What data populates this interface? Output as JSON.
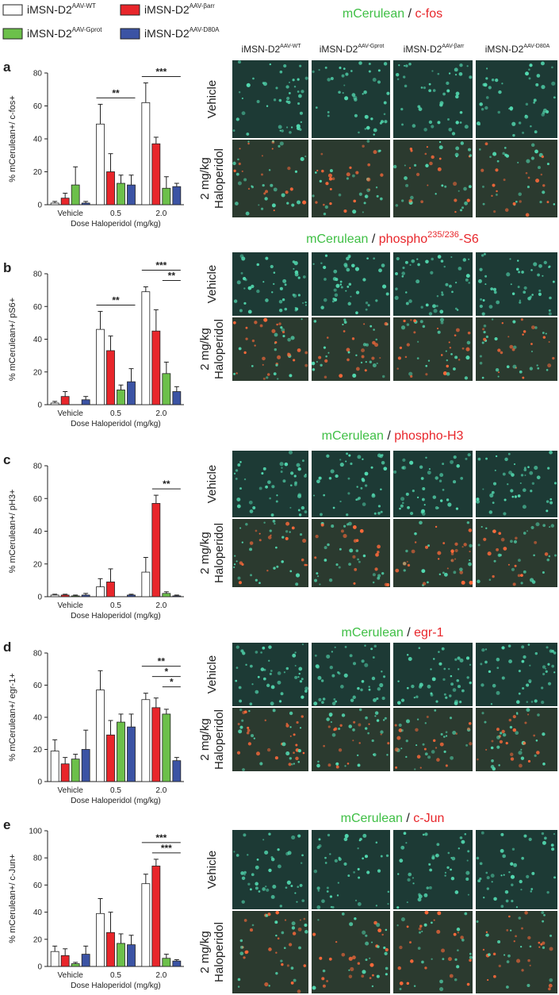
{
  "legend": [
    {
      "label": "iMSN-D2",
      "sup": "AAV-WT",
      "color": "#ffffff"
    },
    {
      "label": "iMSN-D2",
      "sup": "AAV-βarr",
      "color": "#e8262b"
    },
    {
      "label": "iMSN-D2",
      "sup": "AAV-Gprot",
      "color": "#6cc04a"
    },
    {
      "label": "iMSN-D2",
      "sup": "AAV-D80A",
      "color": "#3b53a4"
    }
  ],
  "chart_data": [
    {
      "type": "bar",
      "panel": "a",
      "ylabel": "% mCerulean+/ c-fos+",
      "xlabel": "Dose Haloperidol (mg/kg)",
      "categories": [
        "Vehicle",
        "0.5",
        "2.0"
      ],
      "ylim": [
        0,
        80
      ],
      "yticks": [
        0,
        20,
        40,
        60,
        80
      ],
      "series": [
        {
          "values": [
            1,
            49,
            62
          ],
          "errors": [
            1,
            12,
            12
          ]
        },
        {
          "values": [
            4,
            20,
            37
          ],
          "errors": [
            3,
            11,
            4
          ]
        },
        {
          "values": [
            12,
            13,
            10
          ],
          "errors": [
            11,
            5,
            7
          ]
        },
        {
          "values": [
            1,
            12,
            11
          ],
          "errors": [
            1,
            6,
            2
          ]
        }
      ],
      "significance": [
        {
          "label": "**",
          "category": 1,
          "from": 0,
          "to": 3
        },
        {
          "label": "***",
          "category": 2,
          "from": 0,
          "to": 3
        }
      ]
    },
    {
      "type": "bar",
      "panel": "b",
      "ylabel": "% mCerulean+/ pS6+",
      "xlabel": "Dose Haloperidol (mg/kg)",
      "categories": [
        "Vehicle",
        "0.5",
        "2.0"
      ],
      "ylim": [
        0,
        80
      ],
      "yticks": [
        0,
        20,
        40,
        60,
        80
      ],
      "series": [
        {
          "values": [
            1,
            46,
            69
          ],
          "errors": [
            1,
            11,
            3
          ]
        },
        {
          "values": [
            5,
            33,
            45
          ],
          "errors": [
            3,
            9,
            13
          ]
        },
        {
          "values": [
            0,
            9,
            19
          ],
          "errors": [
            0,
            3,
            7
          ]
        },
        {
          "values": [
            3,
            14,
            8
          ],
          "errors": [
            2,
            8,
            3
          ]
        }
      ],
      "significance": [
        {
          "label": "**",
          "category": 1,
          "from": 0,
          "to": 3
        },
        {
          "label": "***",
          "category": 2,
          "from": 0,
          "to": 3
        },
        {
          "label": "**",
          "category": 2,
          "from": 2,
          "to": 3
        }
      ]
    },
    {
      "type": "bar",
      "panel": "c",
      "ylabel": "% mCerulean+/ pH3+",
      "xlabel": "Dose Haloperidol (mg/kg)",
      "categories": [
        "Vehicle",
        "0.5",
        "2.0"
      ],
      "ylim": [
        0,
        80
      ],
      "yticks": [
        0,
        20,
        40,
        60,
        80
      ],
      "series": [
        {
          "values": [
            1,
            6,
            15
          ],
          "errors": [
            0.5,
            5,
            9
          ]
        },
        {
          "values": [
            1,
            9,
            57
          ],
          "errors": [
            0.5,
            8,
            5
          ]
        },
        {
          "values": [
            0.5,
            0,
            2
          ],
          "errors": [
            0.5,
            0,
            1
          ]
        },
        {
          "values": [
            1,
            1,
            0.5
          ],
          "errors": [
            1,
            0.5,
            0.5
          ]
        }
      ],
      "significance": [
        {
          "label": "**",
          "category": 2,
          "from": 1,
          "to": 3
        }
      ]
    },
    {
      "type": "bar",
      "panel": "d",
      "ylabel": "% mCerulean+/ egr-1+",
      "xlabel": "Dose Haloperidol (mg/kg)",
      "categories": [
        "Vehicle",
        "0.5",
        "2.0"
      ],
      "ylim": [
        0,
        80
      ],
      "yticks": [
        0,
        20,
        40,
        60,
        80
      ],
      "series": [
        {
          "values": [
            19,
            57,
            51
          ],
          "errors": [
            7,
            12,
            4
          ]
        },
        {
          "values": [
            11,
            29,
            46
          ],
          "errors": [
            4,
            9,
            6
          ]
        },
        {
          "values": [
            14,
            37,
            42
          ],
          "errors": [
            3,
            5,
            3
          ]
        },
        {
          "values": [
            20,
            34,
            13
          ],
          "errors": [
            12,
            8,
            2
          ]
        }
      ],
      "significance": [
        {
          "label": "**",
          "category": 2,
          "from": 0,
          "to": 3
        },
        {
          "label": "*",
          "category": 2,
          "from": 1,
          "to": 3
        },
        {
          "label": "*",
          "category": 2,
          "from": 2,
          "to": 3
        }
      ]
    },
    {
      "type": "bar",
      "panel": "e",
      "ylabel": "% mCerulean+/ c-Jun+",
      "xlabel": "Dose Haloperidol (mg/kg)",
      "categories": [
        "Vehicle",
        "0.5",
        "2.0"
      ],
      "ylim": [
        0,
        100
      ],
      "yticks": [
        0,
        20,
        40,
        60,
        80,
        100
      ],
      "series": [
        {
          "values": [
            11,
            39,
            61
          ],
          "errors": [
            4,
            11,
            7
          ]
        },
        {
          "values": [
            8,
            25,
            74
          ],
          "errors": [
            5,
            15,
            5
          ]
        },
        {
          "values": [
            2,
            17,
            6
          ],
          "errors": [
            1,
            7,
            3
          ]
        },
        {
          "values": [
            9,
            16,
            4
          ],
          "errors": [
            6,
            7,
            1
          ]
        }
      ],
      "significance": [
        {
          "label": "***",
          "category": 2,
          "from": 0,
          "to": 3
        },
        {
          "label": "***",
          "category": 2,
          "from": 1,
          "to": 3
        }
      ]
    }
  ],
  "image_panels": [
    {
      "title": [
        {
          "text": "mCerulean",
          "style": "green"
        },
        {
          "text": " / ",
          "style": "plain"
        },
        {
          "text": "c-fos",
          "style": "red"
        }
      ],
      "columns": [
        {
          "label": "iMSN-D2",
          "sup": "AAV-WT"
        },
        {
          "label": "iMSN-D2",
          "sup": "AAV-Gprot"
        },
        {
          "label": "iMSN-D2",
          "sup": "AAV-βarr"
        },
        {
          "label": "iMSN-D2",
          "sup": "AAV-D80A"
        }
      ],
      "rows": [
        [
          "Vehicle"
        ],
        [
          "2 mg/kg",
          "Haloperidol"
        ]
      ]
    },
    {
      "title": [
        {
          "text": "mCerulean",
          "style": "green"
        },
        {
          "text": " / ",
          "style": "plain"
        },
        {
          "text": "phospho",
          "style": "red"
        },
        {
          "text": "235/236",
          "style": "red-sup"
        },
        {
          "text": "-S6",
          "style": "red"
        }
      ],
      "rows": [
        [
          "Vehicle"
        ],
        [
          "2 mg/kg",
          "Haloperidol"
        ]
      ]
    },
    {
      "title": [
        {
          "text": "mCerulean",
          "style": "green"
        },
        {
          "text": " / ",
          "style": "plain"
        },
        {
          "text": "phospho-H3",
          "style": "red"
        }
      ],
      "rows": [
        [
          "Vehicle"
        ],
        [
          "2 mg/kg",
          "Haloperidol"
        ]
      ]
    },
    {
      "title": [
        {
          "text": "mCerulean",
          "style": "green"
        },
        {
          "text": " / ",
          "style": "plain"
        },
        {
          "text": "egr-1",
          "style": "red"
        }
      ],
      "rows": [
        [
          "Vehicle"
        ],
        [
          "2 mg/kg",
          "Haloperidol"
        ]
      ]
    },
    {
      "title": [
        {
          "text": "mCerulean",
          "style": "green"
        },
        {
          "text": " / ",
          "style": "plain"
        },
        {
          "text": "c-Jun",
          "style": "red"
        }
      ],
      "rows": [
        [
          "Vehicle"
        ],
        [
          "2 mg/kg",
          "Haloperidol"
        ]
      ]
    }
  ]
}
